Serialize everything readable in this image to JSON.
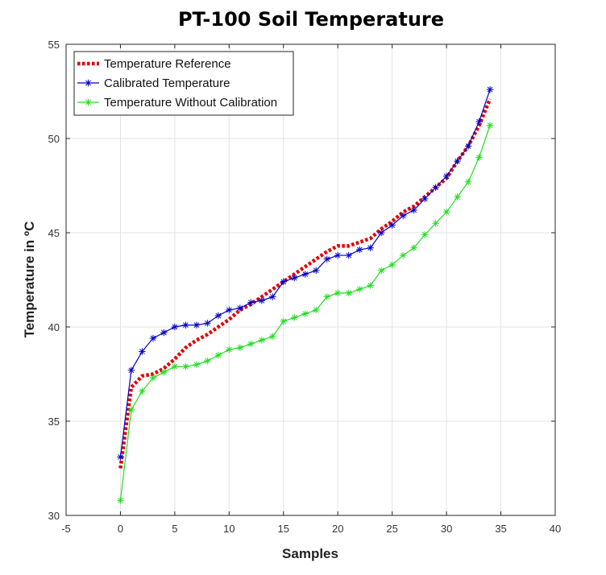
{
  "chart_data": {
    "type": "line",
    "title": "PT-100 Soil Temperature",
    "xlabel": "Samples",
    "ylabel": "Temperature in ºC",
    "xlim": [
      -5,
      40
    ],
    "ylim": [
      30,
      55
    ],
    "xticks": [
      -5,
      0,
      5,
      10,
      15,
      20,
      25,
      30,
      35,
      40
    ],
    "yticks": [
      30,
      35,
      40,
      45,
      50,
      55
    ],
    "xtick_labels": [
      "-5",
      "0",
      "5",
      "10",
      "15",
      "20",
      "25",
      "30",
      "35",
      "40"
    ],
    "ytick_labels": [
      "30",
      "35",
      "40",
      "45",
      "50",
      "55"
    ],
    "grid": true,
    "legend_position": "top-left",
    "x": [
      0,
      1,
      2,
      3,
      4,
      5,
      6,
      7,
      8,
      9,
      10,
      11,
      12,
      13,
      14,
      15,
      16,
      17,
      18,
      19,
      20,
      21,
      22,
      23,
      24,
      25,
      26,
      27,
      28,
      29,
      30,
      31,
      32,
      33,
      34
    ],
    "series": [
      {
        "name": "Temperature Reference",
        "color": "#e00000",
        "style": "dotted",
        "marker": "none",
        "values": [
          32.5,
          36.8,
          37.4,
          37.5,
          37.8,
          38.3,
          38.9,
          39.3,
          39.6,
          40.0,
          40.4,
          40.9,
          41.2,
          41.6,
          42.0,
          42.4,
          42.8,
          43.2,
          43.6,
          44.0,
          44.3,
          44.3,
          44.5,
          44.7,
          45.2,
          45.6,
          46.1,
          46.4,
          46.9,
          47.4,
          47.9,
          48.8,
          49.6,
          50.7,
          52.1
        ]
      },
      {
        "name": "Calibrated Temperature",
        "color": "#0000c8",
        "style": "solid",
        "marker": "plus-star",
        "values": [
          33.1,
          37.7,
          38.7,
          39.4,
          39.7,
          40.0,
          40.1,
          40.1,
          40.2,
          40.6,
          40.9,
          41.0,
          41.3,
          41.4,
          41.6,
          42.4,
          42.6,
          42.8,
          43.0,
          43.6,
          43.8,
          43.8,
          44.1,
          44.2,
          45.0,
          45.4,
          45.9,
          46.2,
          46.8,
          47.4,
          48.0,
          48.8,
          49.6,
          50.9,
          52.6
        ]
      },
      {
        "name": "Temperature Without Calibration",
        "color": "#22dd22",
        "style": "solid",
        "marker": "plus-star",
        "values": [
          30.8,
          35.6,
          36.6,
          37.3,
          37.6,
          37.9,
          37.9,
          38.0,
          38.2,
          38.5,
          38.8,
          38.9,
          39.1,
          39.3,
          39.5,
          40.3,
          40.5,
          40.7,
          40.9,
          41.6,
          41.8,
          41.8,
          42.0,
          42.2,
          43.0,
          43.3,
          43.8,
          44.2,
          44.9,
          45.5,
          46.1,
          46.9,
          47.7,
          49.0,
          50.7
        ]
      }
    ]
  }
}
